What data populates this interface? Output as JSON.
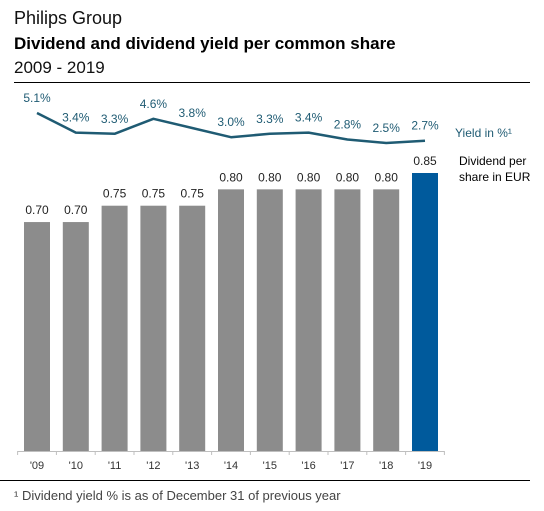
{
  "header": {
    "org": "Philips Group",
    "title": "Dividend and dividend yield per common share",
    "subtitle": "2009 - 2019"
  },
  "footnote": "¹ Dividend yield % is as of December 31 of previous year",
  "colors": {
    "bar": "#8c8c8c",
    "bar_highlight": "#005a9c",
    "yield_line": "#1f5b73"
  },
  "chart_data": {
    "type": "bar",
    "categories": [
      "'09",
      "'10",
      "'11",
      "'12",
      "'13",
      "'14",
      "'15",
      "'16",
      "'17",
      "'18",
      "'19"
    ],
    "series": [
      {
        "name": "Dividend per share in EUR",
        "type": "bar",
        "values": [
          0.7,
          0.7,
          0.75,
          0.75,
          0.75,
          0.8,
          0.8,
          0.8,
          0.8,
          0.8,
          0.85
        ],
        "labels": [
          "0.70",
          "0.70",
          "0.75",
          "0.75",
          "0.75",
          "0.80",
          "0.80",
          "0.80",
          "0.80",
          "0.80",
          "0.85"
        ],
        "legend_lines": [
          "Dividend per",
          "share in EUR"
        ]
      },
      {
        "name": "Yield in %¹",
        "type": "line",
        "values": [
          5.1,
          3.4,
          3.3,
          4.6,
          3.8,
          3.0,
          3.3,
          3.4,
          2.8,
          2.5,
          2.7
        ],
        "labels": [
          "5.1%",
          "3.4%",
          "3.3%",
          "4.6%",
          "3.8%",
          "3.0%",
          "3.3%",
          "3.4%",
          "2.8%",
          "2.5%",
          "2.7%"
        ]
      }
    ],
    "highlight_index": 10,
    "ylim": [
      0,
      0.85
    ],
    "yield_range": [
      2.5,
      5.1
    ],
    "grid": false
  }
}
